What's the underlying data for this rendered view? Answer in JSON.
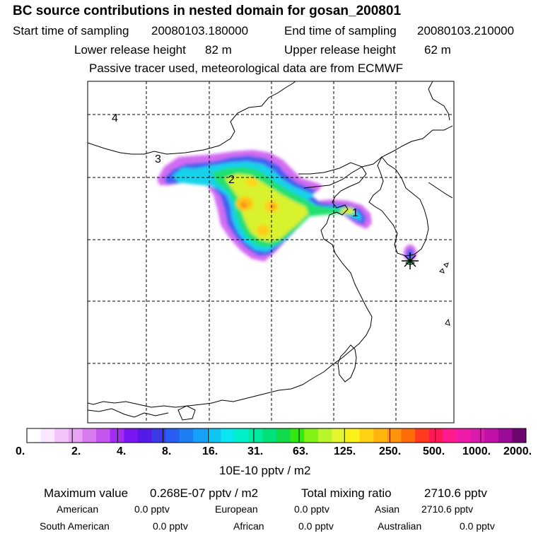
{
  "title": "BC  source contributions in nested domain for gosan_200801",
  "header": {
    "start_label": "Start time of sampling",
    "start_value": "20080103.180000",
    "end_label": "End time of sampling",
    "end_value": "20080103.210000",
    "lower_label": "Lower release height",
    "lower_value": "82 m",
    "upper_label": "Upper release height",
    "upper_value": "62 m",
    "note": "Passive tracer used, meteorological data are from ECMWF"
  },
  "map": {
    "region_labels": [
      "4",
      "3",
      "2",
      "1"
    ],
    "receptor": "gosan"
  },
  "colorbar": {
    "tick_labels": [
      "0.",
      "2.",
      "4.",
      "8.",
      "16.",
      "31.",
      "63.",
      "125.",
      "250.",
      "500.",
      "1000.",
      "2000."
    ],
    "unit": "10E-10 pptv / m2",
    "colors": [
      "#ffffff",
      "#fbe6ff",
      "#f2c4fb",
      "#e9a3f6",
      "#d67cf0",
      "#c455ee",
      "#a22cf2",
      "#7a16f2",
      "#5519e8",
      "#3a3ae6",
      "#2a5df2",
      "#1e7ff5",
      "#15a1f7",
      "#0fc4f3",
      "#08e7ef",
      "#00f0cc",
      "#00eba0",
      "#00e277",
      "#10d94a",
      "#34e80f",
      "#80f214",
      "#b8f52a",
      "#e5f530",
      "#faf01a",
      "#ffd313",
      "#ffb40e",
      "#ff930a",
      "#ff6a0a",
      "#ff3a1e",
      "#ff1757",
      "#ff1a8e",
      "#f01aa8",
      "#dc1aaf",
      "#c010a8",
      "#9c0a98",
      "#6e0670"
    ]
  },
  "footer": {
    "max_label": "Maximum value",
    "max_value": "0.268E-07 pptv / m2",
    "total_label": "Total mixing ratio",
    "total_value": "2710.6 pptv",
    "american_label": "American",
    "american_value": "0.0 pptv",
    "european_label": "European",
    "european_value": "0.0 pptv",
    "asian_label": "Asian",
    "asian_value": "2710.6 pptv",
    "southam_label": "South American",
    "southam_value": "0.0 pptv",
    "african_label": "African",
    "african_value": "0.0 pptv",
    "australian_label": "Australian",
    "australian_value": "0.0 pptv"
  }
}
